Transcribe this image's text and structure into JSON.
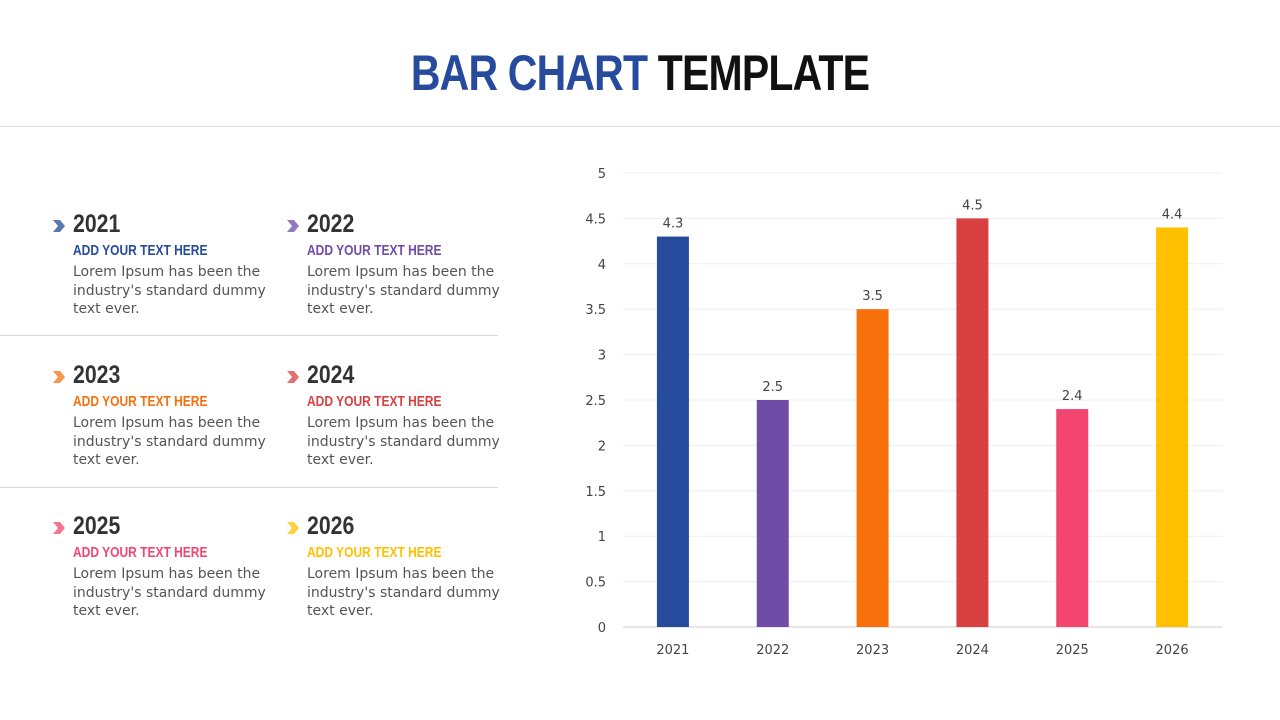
{
  "title": {
    "part1": "BAR CHART",
    "part2": "TEMPLATE"
  },
  "items": [
    {
      "year": "2021",
      "heading": "ADD YOUR TEXT HERE",
      "text": "Lorem Ipsum has been the industry's standard dummy text ever.",
      "color": "#264a9c",
      "icon": "chevron-right-icon"
    },
    {
      "year": "2022",
      "heading": "ADD YOUR TEXT HERE",
      "text": "Lorem Ipsum has been the industry's standard dummy text ever.",
      "color": "#6f4ca8",
      "icon": "chevron-right-icon"
    },
    {
      "year": "2023",
      "heading": "ADD YOUR TEXT HERE",
      "text": "Lorem Ipsum has been the industry's standard dummy text ever.",
      "color": "#f7700c",
      "icon": "chevron-right-icon"
    },
    {
      "year": "2024",
      "heading": "ADD YOUR TEXT HERE",
      "text": "Lorem Ipsum has been the industry's standard dummy text ever.",
      "color": "#d94141",
      "icon": "chevron-right-icon"
    },
    {
      "year": "2025",
      "heading": "ADD YOUR TEXT HERE",
      "text": "Lorem Ipsum has been the industry's standard dummy text ever.",
      "color": "#f24670",
      "icon": "chevron-right-icon"
    },
    {
      "year": "2026",
      "heading": "ADD YOUR TEXT HERE",
      "text": "Lorem Ipsum has been the industry's standard dummy text ever.",
      "color": "#ffc000",
      "icon": "chevron-right-icon"
    }
  ],
  "chart_data": {
    "type": "bar",
    "categories": [
      "2021",
      "2022",
      "2023",
      "2024",
      "2025",
      "2026"
    ],
    "values": [
      4.3,
      2.5,
      3.5,
      4.5,
      2.4,
      4.4
    ],
    "colors": [
      "#264a9c",
      "#6f4ca8",
      "#f7700c",
      "#d94141",
      "#f24670",
      "#ffc000"
    ],
    "yticks": [
      "0",
      "0.5",
      "1",
      "1.5",
      "2",
      "2.5",
      "3",
      "3.5",
      "4",
      "4.5",
      "5"
    ],
    "ylim": [
      0,
      5
    ],
    "grid": true,
    "data_labels": true
  }
}
